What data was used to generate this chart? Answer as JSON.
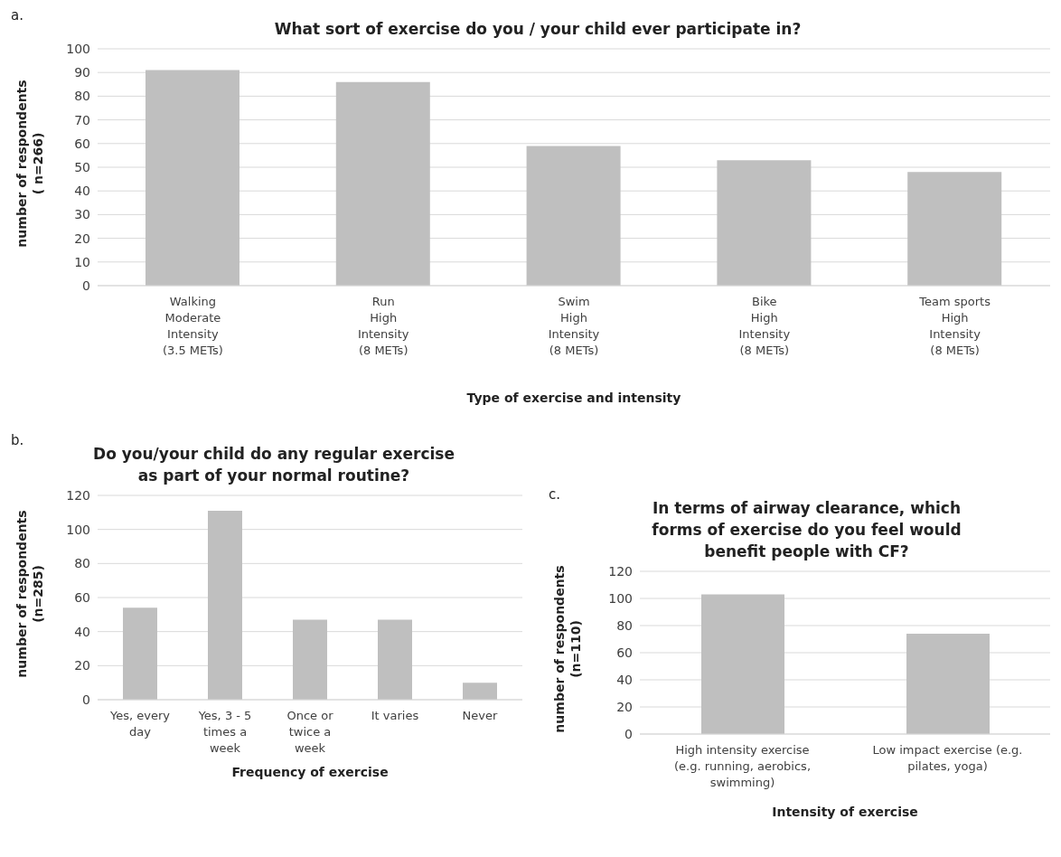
{
  "chart_data": [
    {
      "type": "bar",
      "title": "What sort of exercise do you / your child ever participate in?",
      "xlabel": "Type of exercise and intensity",
      "ylabel": "number of respondents\n( n=266)",
      "annotations": [
        "a."
      ],
      "categories": [
        "Walking\nModerate\nIntensity\n(3.5 METs)",
        "Run\nHigh\nIntensity\n(8 METs)",
        "Swim\nHigh\nIntensity\n(8 METs)",
        "Bike\nHigh\nIntensity\n(8 METs)",
        "Team sports\nHigh\nIntensity\n(8 METs)"
      ],
      "values": [
        91,
        86,
        59,
        53,
        48
      ],
      "color": "#bfbfbf",
      "ylim": [
        0,
        100
      ],
      "yticks": [
        0,
        10,
        20,
        30,
        40,
        50,
        60,
        70,
        80,
        90,
        100
      ],
      "grid": "y"
    },
    {
      "type": "bar",
      "title": "Do you/your child do any regular exercise\nas part of your normal routine?",
      "xlabel": "Frequency of exercise",
      "ylabel": "number of respondents\n(n=285)",
      "annotations": [
        "b."
      ],
      "categories": [
        "Yes, every\nday",
        "Yes, 3 - 5\ntimes a\nweek",
        "Once or\ntwice a\nweek",
        "It varies",
        "Never"
      ],
      "values": [
        54,
        111,
        47,
        47,
        10
      ],
      "color": "#bfbfbf",
      "ylim": [
        0,
        120
      ],
      "yticks": [
        0,
        20,
        40,
        60,
        80,
        100,
        120
      ],
      "grid": "y"
    },
    {
      "type": "bar",
      "title": "In terms of airway clearance, which\nforms of exercise do you feel would\nbenefit people with CF?",
      "xlabel": "Intensity of exercise",
      "ylabel": "number of respondents\n(n=110)",
      "annotations": [
        "c."
      ],
      "categories": [
        "High intensity exercise\n(e.g. running, aerobics,\nswimming)",
        "Low impact exercise (e.g.\npilates, yoga)"
      ],
      "values": [
        103,
        74
      ],
      "color": "#bfbfbf",
      "ylim": [
        0,
        120
      ],
      "yticks": [
        0,
        20,
        40,
        60,
        80,
        100,
        120
      ],
      "grid": "y"
    }
  ]
}
